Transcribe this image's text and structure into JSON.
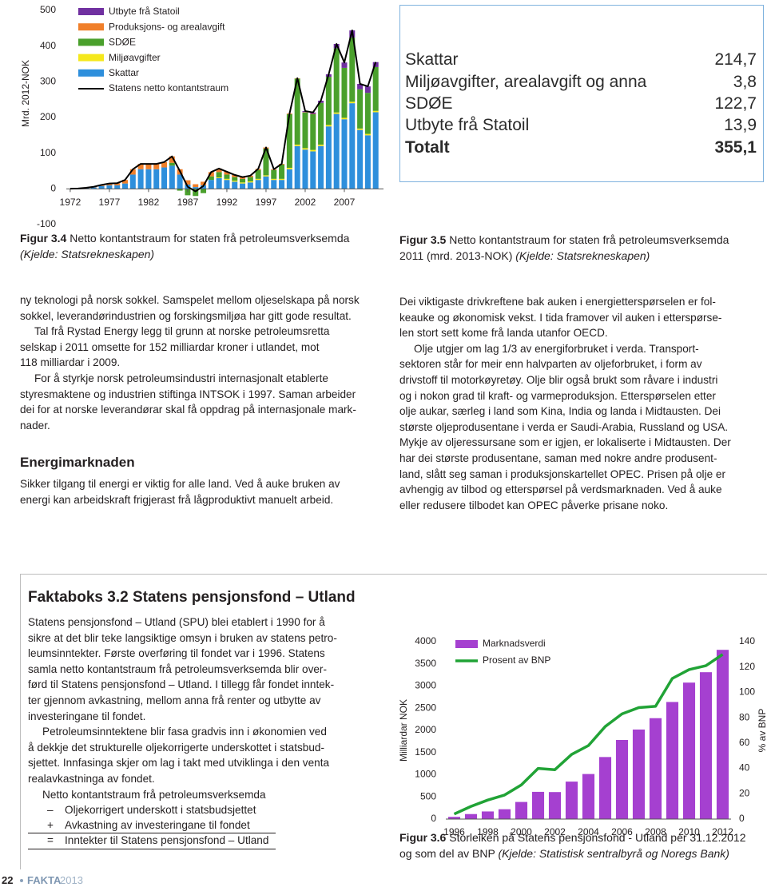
{
  "chart_data": [
    {
      "type": "bar",
      "stacked": true,
      "ylabel": "Mrd. 2012-NOK",
      "x": [
        1972,
        1973,
        1974,
        1975,
        1976,
        1977,
        1978,
        1979,
        1980,
        1981,
        1982,
        1983,
        1984,
        1985,
        1986,
        1987,
        1988,
        1989,
        1990,
        1991,
        1992,
        1993,
        1994,
        1995,
        1996,
        1997,
        1998,
        1999,
        2000,
        2001,
        2002,
        2003,
        2004,
        2005,
        2006,
        2007,
        2008,
        2009,
        2010,
        2011
      ],
      "xlim": [
        1971.5,
        2012
      ],
      "xticks": [
        1972,
        1977,
        1982,
        1987,
        1992,
        1997,
        2002,
        2007
      ],
      "ylim": [
        -100,
        500
      ],
      "yticks": [
        -100,
        0,
        100,
        200,
        300,
        400,
        500
      ],
      "grid": false,
      "legend": "top-left",
      "series": [
        {
          "name": "Utbyte frå Statoil",
          "color": "#7030a0",
          "values": [
            0,
            0,
            0,
            0,
            0,
            0,
            0,
            0,
            0,
            0,
            0,
            0,
            0,
            0,
            0,
            0,
            0,
            0,
            0,
            0,
            0,
            0,
            0,
            0,
            0,
            0,
            0,
            0,
            0,
            0,
            3,
            4,
            6,
            7,
            12,
            15,
            20,
            15,
            18,
            13.9
          ]
        },
        {
          "name": "Produksjons- og arealavgift",
          "color": "#f07f2a",
          "values": [
            0,
            0,
            1,
            2,
            3,
            5,
            6,
            10,
            15,
            15,
            15,
            15,
            15,
            18,
            15,
            12,
            8,
            10,
            12,
            10,
            8,
            6,
            5,
            4,
            3,
            3,
            2,
            2,
            2,
            1,
            1,
            1,
            0,
            0,
            0,
            0,
            0,
            0,
            0,
            0
          ]
        },
        {
          "name": "SDØE",
          "color": "#4aa02c",
          "values": [
            0,
            0,
            0,
            0,
            0,
            0,
            0,
            0,
            0,
            0,
            0,
            0,
            0,
            8,
            -5,
            -18,
            -20,
            -12,
            10,
            15,
            12,
            10,
            10,
            12,
            25,
            75,
            25,
            40,
            150,
            185,
            100,
            100,
            117,
            135,
            180,
            140,
            180,
            110,
            115,
            122.7
          ]
        },
        {
          "name": "Miljøavgifter",
          "color": "#f5e81c",
          "values": [
            0,
            0,
            0,
            0,
            0,
            0,
            0,
            0,
            0,
            0,
            0,
            0,
            0,
            0,
            0,
            0,
            0,
            0,
            0,
            2,
            3,
            3,
            3,
            3,
            3,
            3,
            3,
            3,
            4,
            4,
            4,
            4,
            4,
            4,
            4,
            4,
            4,
            4,
            4,
            3.8
          ]
        },
        {
          "name": "Skattar",
          "color": "#2e8fdc",
          "values": [
            0.5,
            1,
            2,
            4,
            8,
            10,
            10,
            15,
            40,
            55,
            55,
            55,
            60,
            65,
            40,
            12,
            5,
            10,
            25,
            30,
            25,
            20,
            15,
            18,
            25,
            35,
            25,
            25,
            55,
            120,
            110,
            105,
            120,
            175,
            210,
            195,
            240,
            165,
            150,
            214.7
          ]
        },
        {
          "name": "Statens netto kontantstraum",
          "type": "line",
          "color": "#000000",
          "values": [
            0.5,
            1,
            3,
            6,
            11,
            15,
            16,
            25,
            55,
            70,
            70,
            70,
            75,
            91,
            50,
            6,
            -7,
            8,
            47,
            57,
            48,
            39,
            33,
            37,
            56,
            116,
            55,
            70,
            211,
            310,
            218,
            214,
            247,
            321,
            406,
            354,
            444,
            294,
            287,
            355.1
          ]
        }
      ]
    },
    {
      "type": "bar",
      "ylabel": "Milliardar NOK",
      "y2label": "% av BNP",
      "categories": [
        "1996",
        null,
        "1998",
        null,
        "2000",
        null,
        "2002",
        null,
        "2004",
        null,
        "2006",
        null,
        "2008",
        null,
        "2010",
        null,
        "2012"
      ],
      "ylim": [
        0,
        4000
      ],
      "yticks": [
        0,
        500,
        1000,
        1500,
        2000,
        2500,
        3000,
        3500,
        4000
      ],
      "y2lim": [
        0,
        140
      ],
      "y2ticks": [
        0,
        20,
        40,
        60,
        80,
        100,
        120,
        140
      ],
      "grid": false,
      "legend": "top-left",
      "series": [
        {
          "name": "Marknadsverdi",
          "color": "#a540d0",
          "values": [
            50,
            113,
            172,
            222,
            386,
            614,
            609,
            845,
            1016,
            1399,
            1784,
            2019,
            2275,
            2640,
            3077,
            3312,
            3816
          ]
        },
        {
          "name": "Prosent av BNP",
          "type": "line",
          "axis": "y2",
          "color": "#21a336",
          "values": [
            4,
            10,
            15,
            19,
            27,
            40,
            39,
            51,
            58,
            73,
            83,
            88,
            89,
            111,
            118,
            121,
            130
          ]
        }
      ]
    }
  ],
  "figures": [
    {
      "label": "Figur 3.4",
      "caption": [
        "Netto kontantstraum for staten frå petroleumsverksemda"
      ],
      "source": "(Kjelde: Statsrekneskapen)"
    },
    {
      "label": "Figur 3.5",
      "caption": [
        "Netto kontantstraum for staten frå petroleumsverksemda",
        "2011 (mrd. 2013-NOK)"
      ],
      "source": "(Kjelde: Statsrekneskapen)"
    },
    {
      "label": "Figur 3.6",
      "caption": [
        "Storleiken på Statens pensjonsfond - Utland per 31.12.2012",
        "og som del av BNP"
      ],
      "source": "(Kjelde: Statistisk sentralbyrå og Noregs Bank)"
    }
  ],
  "table": {
    "rows": [
      [
        "Skattar",
        "214,7"
      ],
      [
        "Miljøavgifter, arealavgift og anna",
        "3,8"
      ],
      [
        "SDØE",
        "122,7"
      ],
      [
        "Utbyte frå Statoil",
        "13,9"
      ]
    ],
    "total": [
      "Totalt",
      "355,1"
    ]
  },
  "left_column": {
    "paragraphs": [
      [
        "ny teknologi på norsk sokkel. Samspelet mellom oljeselskapa på norsk",
        "sokkel, leverandørindustrien og forskingsmiljøa har gitt gode resultat."
      ],
      [
        "Tal frå Rystad Energy legg til grunn at norske petroleumsretta",
        "selskap i 2011 omsette for 152 milliardar kroner i utlandet, mot",
        "118 milliardar i 2009."
      ],
      [
        "For å styrkje norsk petroleumsindustri internasjonalt etablerte",
        "styresmaktene og industrien stiftinga INTSOK i 1997. Saman arbeider",
        "dei for at norske leverandørar skal få oppdrag på internasjonale mark-",
        "nader."
      ]
    ],
    "heading": "Energimarknaden",
    "paragraphs_after": [
      [
        "Sikker tilgang til energi er viktig for alle land. Ved å auke bruken av",
        "energi kan arbeidskraft frigjerast frå lågproduktivt manuelt arbeid."
      ]
    ]
  },
  "right_column": {
    "paragraphs": [
      [
        "Dei viktigaste drivkreftene bak auken i energietterspørselen er fol-",
        "keauke og økonomisk vekst. I tida framover vil auken i etterspørse-",
        "len stort sett kome frå landa utanfor OECD."
      ],
      [
        "Olje utgjer om lag 1/3 av energiforbruket i verda. Transport-",
        "sektoren står for meir enn halvparten av oljeforbruket, i form av",
        "drivstoff til motorkøyretøy. Olje blir også brukt som råvare i industri",
        "og i nokon grad til kraft- og varmeproduksjon. Etterspørselen etter",
        "olje aukar, særleg i land som Kina, India og landa i Midtausten. Dei",
        "største oljeprodusentane i verda er Saudi-Arabia, Russland og USA.",
        "Mykje av oljeressursane som er igjen, er lokaliserte i Midtausten. Der",
        "har dei største produsentane, saman med nokre andre produsent-",
        "land, slått seg saman i produksjonskartellet OPEC. Prisen på olje er",
        "avhengig av tilbod og etterspørsel på verdsmarknaden. Ved å auke",
        "eller redusere tilbodet kan OPEC påverke prisane noko."
      ]
    ]
  },
  "factbox": {
    "title": "Faktaboks 3.2 Statens pensjonsfond – Utland",
    "paragraphs": [
      [
        "Statens pensjonsfond – Utland (SPU) blei etablert i 1990 for å",
        "sikre at det blir teke langsiktige omsyn i bruken av statens petro-",
        "leumsinntekter. Første overføring til fondet var i 1996. Statens",
        "samla netto kontantstraum frå petroleumsverksemda blir over-",
        "førd til Statens pensjonsfond – Utland. I tillegg får fondet inntek-",
        "ter gjennom avkastning, mellom anna frå renter og utbytte av",
        "investeringane til fondet."
      ],
      [
        "Petroleumsinntektene blir fasa gradvis inn i økonomien ved",
        "å dekkje det strukturelle oljekorrigerte underskottet i statsbud-",
        "sjettet. Innfasinga skjer om lag i takt med utviklinga i den venta",
        "realavkastninga av fondet."
      ],
      [
        "Netto kontantstraum frå petroleumsverksemda"
      ]
    ],
    "formula": [
      [
        "–",
        "Oljekorrigert underskott i statsbudsjettet"
      ],
      [
        "+",
        "Avkastning av investeringane til fondet"
      ],
      [
        "=",
        "Inntekter til Statens pensjonsfond – Utland"
      ]
    ]
  },
  "footer": {
    "page": "22",
    "publication": "FAKTA",
    "year": "2013"
  }
}
